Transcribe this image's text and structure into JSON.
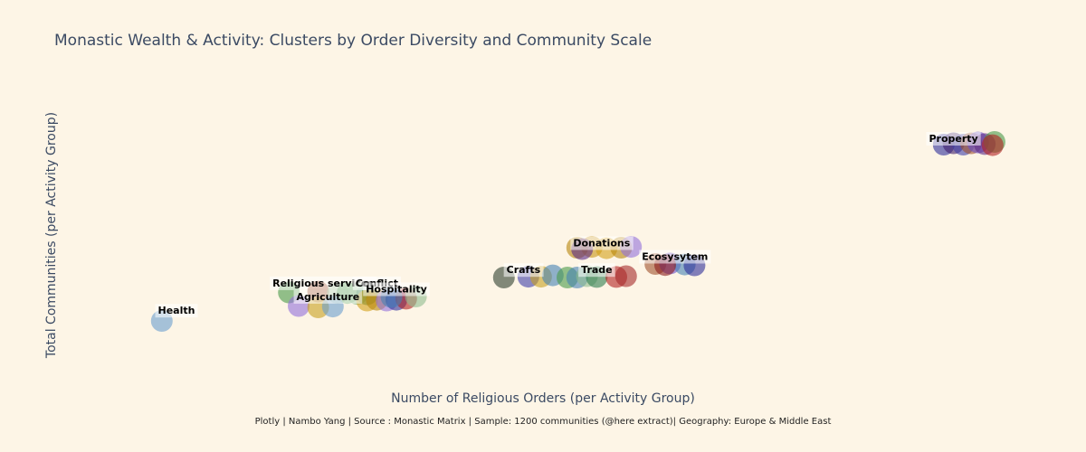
{
  "chart_data": {
    "type": "scatter",
    "title": "Monastic Wealth & Activity: Clusters by Order Diversity and Community Scale",
    "xlabel": "Number of Religious Orders (per Activity Group)",
    "ylabel": "Total Communities (per Activity Group)",
    "caption": "Plotly | Nambo Yang | Source : Monastic Matrix | Sample: 1200 communities (@here extract)| Geography: Europe & Middle East",
    "xlim": [
      0,
      100
    ],
    "ylim": [
      0,
      100
    ],
    "grid": false,
    "showticklabels": false,
    "clusters": [
      {
        "label": "Property",
        "points": [
          {
            "x": 91.0,
            "y": 80.0,
            "color": "#2e2e9a"
          },
          {
            "x": 92.0,
            "y": 80.5,
            "color": "#3d1d6b"
          },
          {
            "x": 93.0,
            "y": 80.0,
            "color": "#3f3fa8"
          },
          {
            "x": 93.8,
            "y": 80.5,
            "color": "#a0522d"
          },
          {
            "x": 94.5,
            "y": 80.8,
            "color": "#6a4fc9"
          },
          {
            "x": 95.2,
            "y": 80.2,
            "color": "#5b2a86"
          },
          {
            "x": 96.2,
            "y": 81.0,
            "color": "#4a9a4a"
          },
          {
            "x": 96.0,
            "y": 79.8,
            "color": "#b22222"
          }
        ]
      },
      {
        "label": "Donations",
        "points": [
          {
            "x": 53.5,
            "y": 42.0,
            "color": "#b8860b"
          },
          {
            "x": 55.0,
            "y": 42.3,
            "color": "#c89514"
          },
          {
            "x": 56.5,
            "y": 41.8,
            "color": "#d4a017"
          },
          {
            "x": 58.0,
            "y": 42.0,
            "color": "#b8860b"
          },
          {
            "x": 59.0,
            "y": 42.3,
            "color": "#9370db"
          },
          {
            "x": 54.0,
            "y": 41.5,
            "color": "#5b2a86"
          }
        ]
      },
      {
        "label": "Ecosysytem",
        "points": [
          {
            "x": 61.5,
            "y": 36.0,
            "color": "#a0522d"
          },
          {
            "x": 63.0,
            "y": 36.2,
            "color": "#6a4fc9"
          },
          {
            "x": 64.5,
            "y": 35.8,
            "color": "#4682b4"
          },
          {
            "x": 65.5,
            "y": 35.5,
            "color": "#2e2e9a"
          },
          {
            "x": 62.5,
            "y": 35.6,
            "color": "#8b1a1a"
          }
        ]
      },
      {
        "label": "Crafts",
        "points": [
          {
            "x": 46.0,
            "y": 31.0,
            "color": "#2f3f2f"
          },
          {
            "x": 48.5,
            "y": 31.3,
            "color": "#3f3fa8"
          },
          {
            "x": 49.8,
            "y": 31.3,
            "color": "#c8a020"
          },
          {
            "x": 51.0,
            "y": 31.8,
            "color": "#4682b4"
          }
        ]
      },
      {
        "label": "Trade",
        "points": [
          {
            "x": 52.5,
            "y": 31.0,
            "color": "#4a9a4a"
          },
          {
            "x": 53.5,
            "y": 31.0,
            "color": "#4682b4"
          },
          {
            "x": 54.5,
            "y": 31.5,
            "color": "#8fbc8f"
          },
          {
            "x": 55.5,
            "y": 31.2,
            "color": "#2e7d4f"
          },
          {
            "x": 57.5,
            "y": 31.2,
            "color": "#b22222"
          },
          {
            "x": 58.5,
            "y": 31.5,
            "color": "#a52a2a"
          }
        ]
      },
      {
        "label": "Religious services",
        "points": [
          {
            "x": 24.0,
            "y": 25.5,
            "color": "#4a9a4a"
          },
          {
            "x": 27.0,
            "y": 25.8,
            "color": "#8b2e0b"
          },
          {
            "x": 29.0,
            "y": 25.3,
            "color": "#8fbc8f"
          }
        ]
      },
      {
        "label": "Conflict",
        "points": [
          {
            "x": 30.0,
            "y": 25.3,
            "color": "#4a9a4a"
          },
          {
            "x": 31.0,
            "y": 25.0,
            "color": "#6aaa6a"
          },
          {
            "x": 32.0,
            "y": 24.8,
            "color": "#2e7d4f"
          }
        ]
      },
      {
        "label": "Hospitality",
        "points": [
          {
            "x": 32.0,
            "y": 22.5,
            "color": "#d4a017"
          },
          {
            "x": 33.0,
            "y": 22.8,
            "color": "#b8860b"
          },
          {
            "x": 34.0,
            "y": 22.5,
            "color": "#9370db"
          },
          {
            "x": 35.0,
            "y": 22.8,
            "color": "#2e2e9a"
          },
          {
            "x": 36.0,
            "y": 23.2,
            "color": "#b22222"
          },
          {
            "x": 37.0,
            "y": 24.0,
            "color": "#8fbc8f"
          },
          {
            "x": 34.5,
            "y": 23.8,
            "color": "#4682b4"
          }
        ]
      },
      {
        "label": "Agriculture",
        "points": [
          {
            "x": 25.0,
            "y": 20.5,
            "color": "#9370db"
          },
          {
            "x": 27.0,
            "y": 20.0,
            "color": "#c8a020"
          },
          {
            "x": 28.5,
            "y": 20.3,
            "color": "#6a9fcf"
          }
        ]
      },
      {
        "label": "Health",
        "points": [
          {
            "x": 11.0,
            "y": 15.0,
            "color": "#6a9fcf"
          }
        ]
      }
    ],
    "label_positions": [
      {
        "label": "Property",
        "x": 92.0,
        "y": 81.0
      },
      {
        "label": "Donations",
        "x": 56.0,
        "y": 42.5
      },
      {
        "label": "Ecosysytem",
        "x": 63.5,
        "y": 37.5
      },
      {
        "label": "Crafts",
        "x": 48.0,
        "y": 32.6
      },
      {
        "label": "Trade",
        "x": 55.5,
        "y": 32.6
      },
      {
        "label": "Religious services",
        "x": 27.5,
        "y": 27.7
      },
      {
        "label": "Conflict",
        "x": 33.0,
        "y": 27.7
      },
      {
        "label": "Hospitality",
        "x": 35.0,
        "y": 25.5
      },
      {
        "label": "Agriculture",
        "x": 28.0,
        "y": 22.7
      },
      {
        "label": "Health",
        "x": 12.5,
        "y": 17.6
      }
    ]
  }
}
